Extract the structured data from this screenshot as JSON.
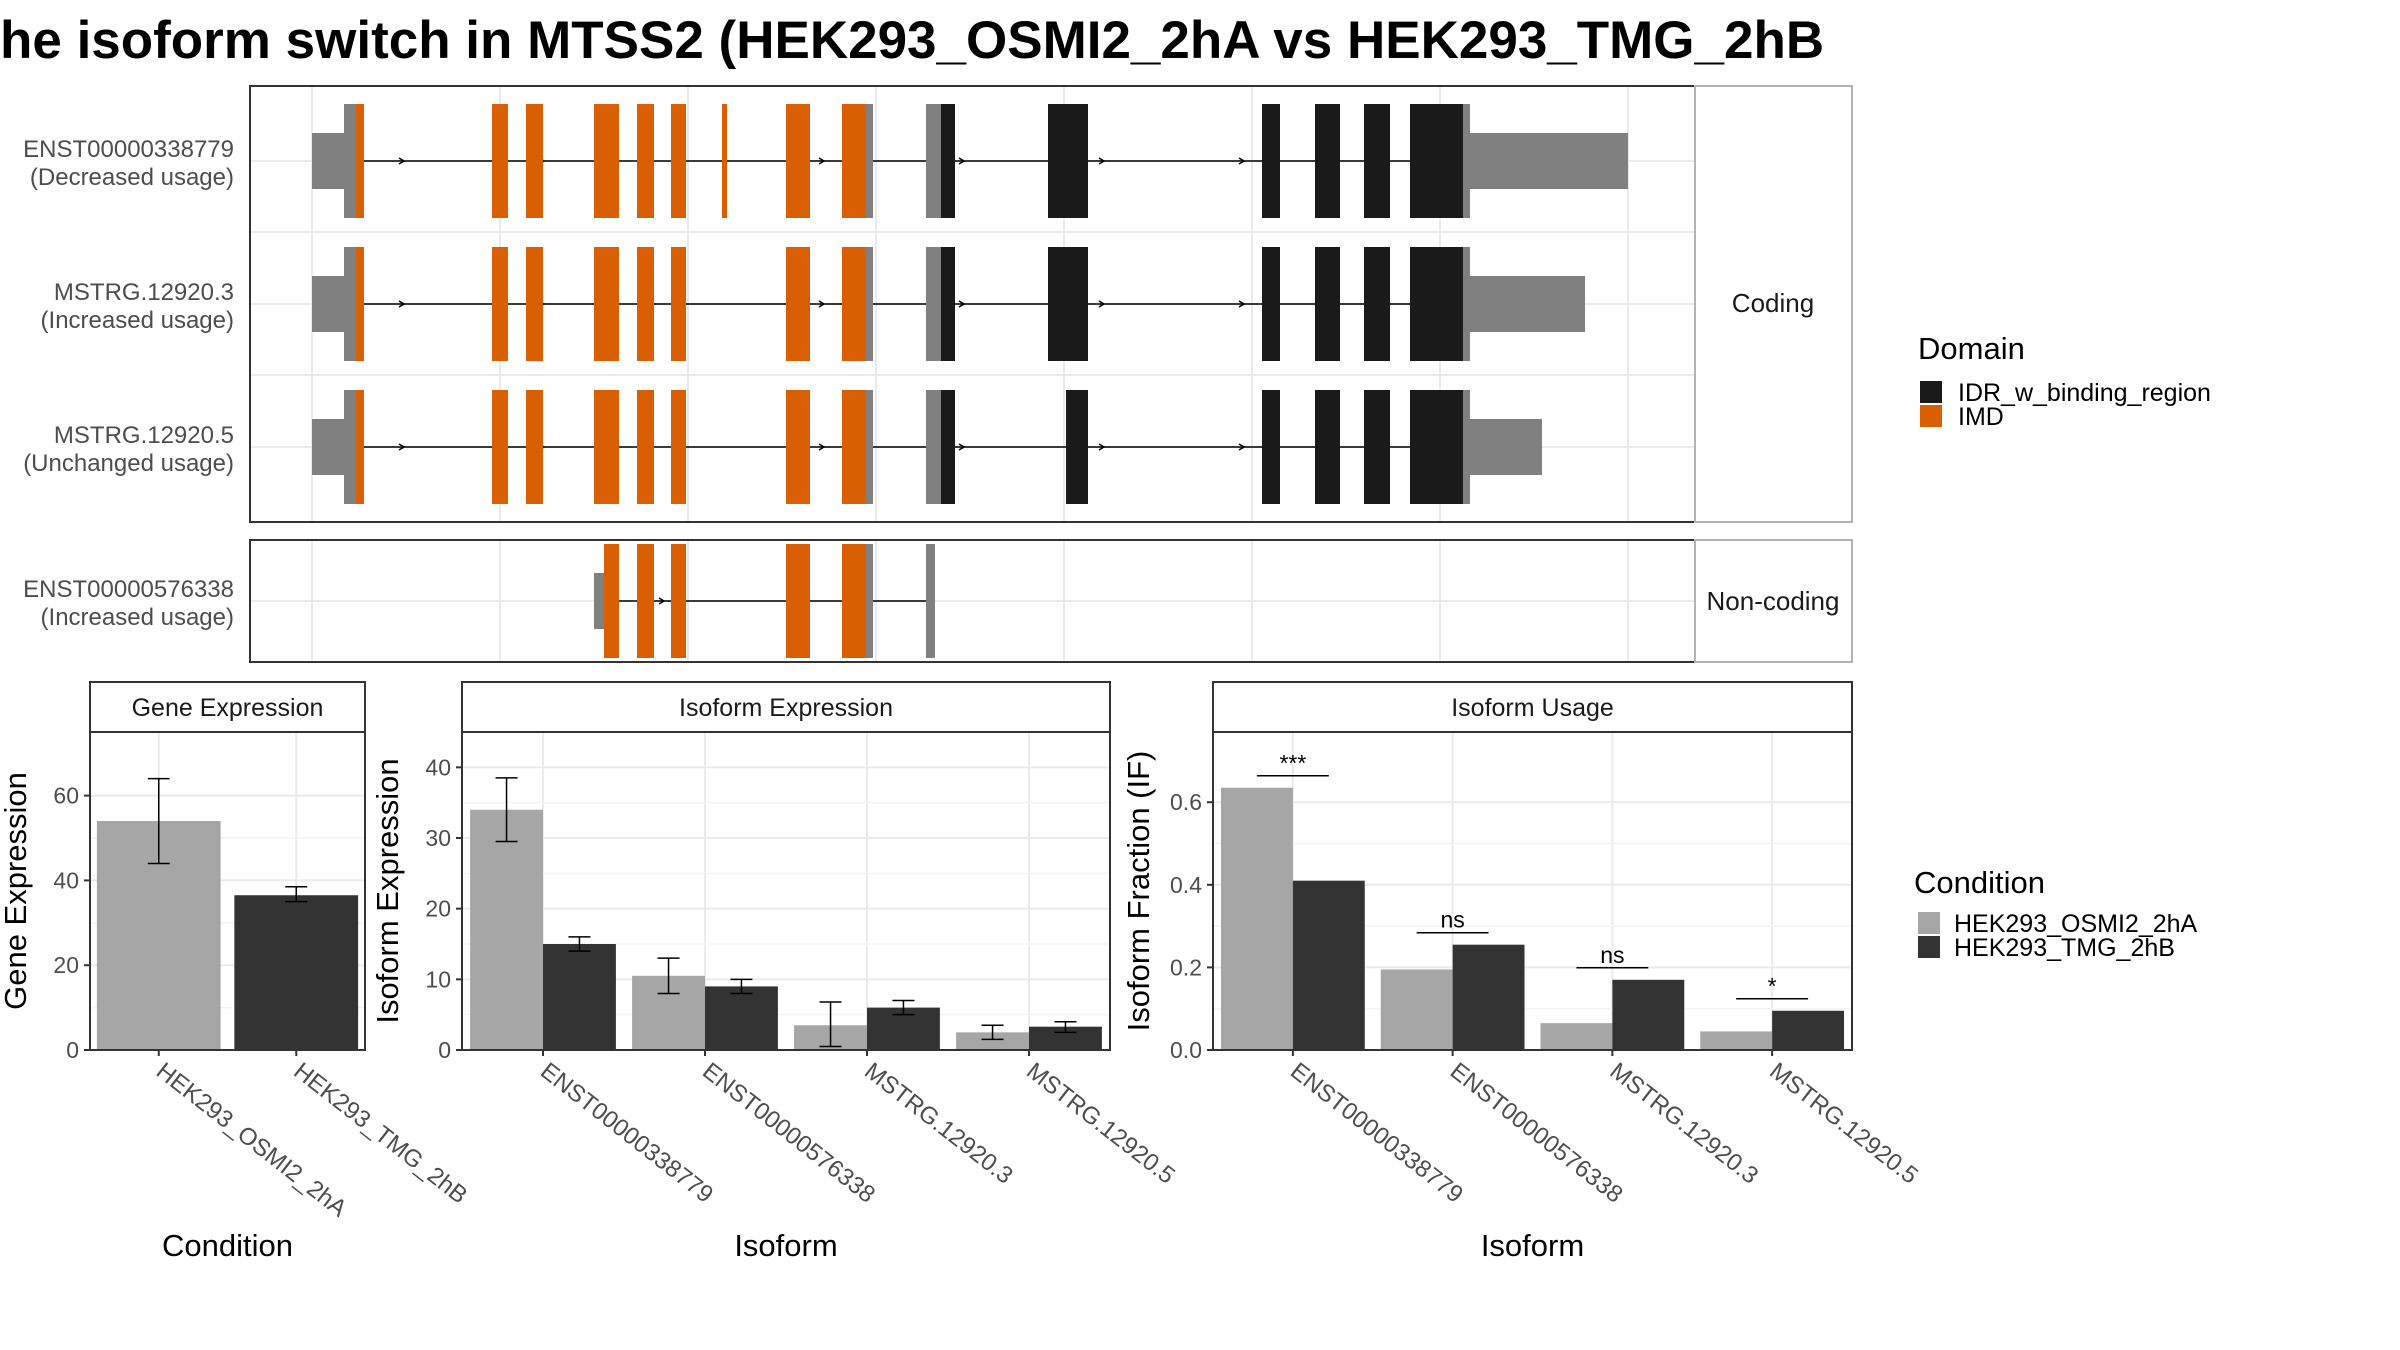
{
  "title": "he isoform switch in MTSS2 (HEK293_OSMI2_2hA vs HEK293_TMG_2hB",
  "structure": {
    "coding_label": "Coding",
    "noncoding_label": "Non-coding",
    "coding_transcripts": [
      {
        "id": "ENST00000338779",
        "usage": "(Decreased usage)"
      },
      {
        "id": "MSTRG.12920.3",
        "usage": "(Increased usage)"
      },
      {
        "id": "MSTRG.12920.5",
        "usage": "(Unchanged usage)"
      }
    ],
    "noncoding_transcripts": [
      {
        "id": "ENST00000576338",
        "usage": "(Increased usage)"
      }
    ],
    "domain_legend": {
      "title": "Domain",
      "items": [
        {
          "label": "IDR_w_binding_region",
          "color": "#1a1a1a"
        },
        {
          "label": "IMD",
          "color": "#d95f02"
        }
      ]
    },
    "colors": {
      "utr": "#808080",
      "coding_exon": "#808080",
      "imd": "#d95f02",
      "idr": "#1a1a1a"
    }
  },
  "condition_legend": {
    "title": "Condition",
    "items": [
      {
        "label": "HEK293_OSMI2_2hA",
        "color": "#a6a6a6"
      },
      {
        "label": "HEK293_TMG_2hB",
        "color": "#333333"
      }
    ]
  },
  "chart_data": [
    {
      "type": "bar",
      "title": "Gene Expression",
      "xlabel": "Condition",
      "ylabel": "Gene Expression",
      "categories": [
        "HEK293_OSMI2_2hA",
        "HEK293_TMG_2hB"
      ],
      "values": [
        54,
        36.5
      ],
      "errors": [
        [
          44,
          64
        ],
        [
          35,
          38.5
        ]
      ],
      "colors": [
        "#a6a6a6",
        "#333333"
      ],
      "yticks": [
        0,
        20,
        40,
        60
      ],
      "ylim": [
        0,
        75
      ]
    },
    {
      "type": "bar",
      "title": "Isoform Expression",
      "xlabel": "Isoform",
      "ylabel": "Isoform Expression",
      "categories": [
        "ENST00000338779",
        "ENST00000576338",
        "MSTRG.12920.3",
        "MSTRG.12920.5"
      ],
      "series": [
        {
          "name": "HEK293_OSMI2_2hA",
          "values": [
            34,
            10.5,
            3.5,
            2.5
          ],
          "errors": [
            [
              29.5,
              38.5
            ],
            [
              8,
              13
            ],
            [
              0.5,
              6.8
            ],
            [
              1.5,
              3.5
            ]
          ]
        },
        {
          "name": "HEK293_TMG_2hB",
          "values": [
            15,
            9,
            6,
            3.3
          ],
          "errors": [
            [
              14,
              16
            ],
            [
              8,
              10
            ],
            [
              5,
              7
            ],
            [
              2.5,
              4
            ]
          ]
        }
      ],
      "yticks": [
        0,
        10,
        20,
        30,
        40
      ],
      "ylim": [
        0,
        45
      ]
    },
    {
      "type": "bar",
      "title": "Isoform Usage",
      "xlabel": "Isoform",
      "ylabel": "Isoform Fraction (IF)",
      "categories": [
        "ENST00000338779",
        "ENST00000576338",
        "MSTRG.12920.3",
        "MSTRG.12920.5"
      ],
      "series": [
        {
          "name": "HEK293_OSMI2_2hA",
          "values": [
            0.635,
            0.195,
            0.065,
            0.045
          ]
        },
        {
          "name": "HEK293_TMG_2hB",
          "values": [
            0.41,
            0.255,
            0.17,
            0.095
          ]
        }
      ],
      "significance": [
        "***",
        "ns",
        "ns",
        "*"
      ],
      "yticks": [
        0.0,
        0.2,
        0.4,
        0.6
      ],
      "ytick_labels": [
        "0.0",
        "0.2",
        "0.4",
        "0.6"
      ],
      "ylim": [
        0,
        0.77
      ]
    }
  ]
}
